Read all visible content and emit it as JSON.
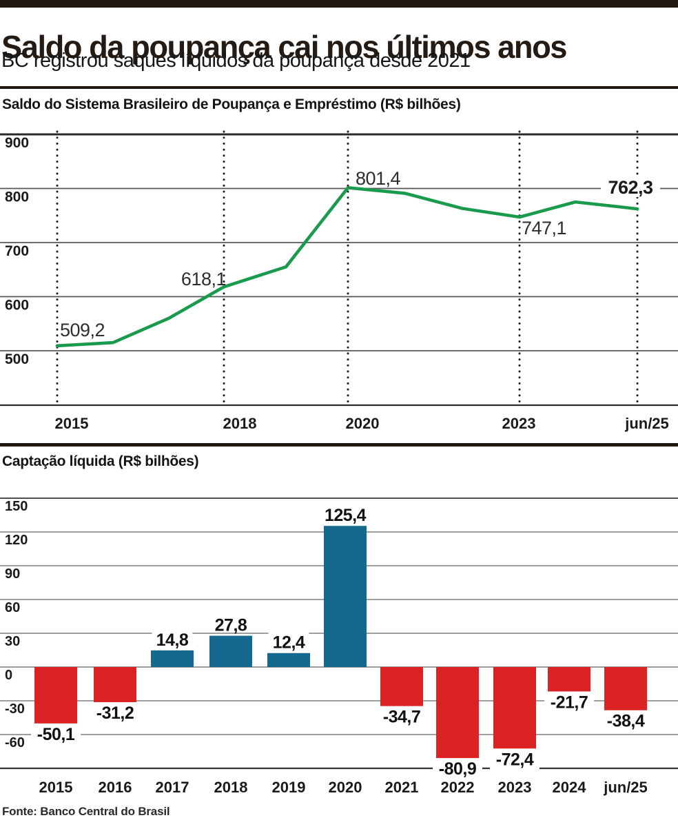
{
  "header": {
    "title": "Saldo da poupança cai nos últimos anos",
    "subtitle": "BC registrou saques líquidos da poupança desde 2021"
  },
  "footer": {
    "source": "Fonte: Banco Central do Brasil"
  },
  "colors": {
    "line_green": "#1a9a4d",
    "bar_positive_blue": "#15698f",
    "bar_negative_red": "#d92221",
    "text_dark": "#1a1a1a",
    "rule_black": "#211813",
    "grid_gray": "#7e7e7e"
  },
  "chart_data": [
    {
      "type": "line",
      "title": "Saldo do Sistema Brasileiro de Poupança e Empréstimo (R$ bilhões)",
      "x": [
        "2015",
        "2016",
        "2017",
        "2018",
        "2019",
        "2020",
        "2021",
        "2022",
        "2023",
        "2024",
        "jun/25"
      ],
      "values": [
        509.2,
        515,
        560,
        618.1,
        655,
        801.4,
        791,
        763,
        747.1,
        775,
        762.3
      ],
      "point_labels": [
        {
          "x": "2015",
          "label": "509,2",
          "bold": false
        },
        {
          "x": "2018",
          "label": "618,1",
          "bold": false
        },
        {
          "x": "2020",
          "label": "801,4",
          "bold": false
        },
        {
          "x": "2023",
          "label": "747,1",
          "bold": false
        },
        {
          "x": "jun/25",
          "label": "762,3",
          "bold": true
        }
      ],
      "yticks": [
        900,
        800,
        700,
        600,
        500
      ],
      "ylim": [
        400,
        900
      ],
      "xticks": [
        "2015",
        "2018",
        "2020",
        "2023",
        "jun/25"
      ],
      "grid": "horizontal solid lines, vertical dotted lines at labeled years",
      "legend": "none",
      "line_color": "#1a9a4d"
    },
    {
      "type": "bar",
      "title": "Captação líquida (R$ bilhões)",
      "categories": [
        "2015",
        "2016",
        "2017",
        "2018",
        "2019",
        "2020",
        "2021",
        "2022",
        "2023",
        "2024",
        "jun/25"
      ],
      "values": [
        -50.1,
        -31.2,
        14.8,
        27.8,
        12.4,
        125.4,
        -34.7,
        -80.9,
        -72.4,
        -21.7,
        -38.4
      ],
      "bar_labels": [
        "-50,1",
        "-31,2",
        "14,8",
        "27,8",
        "12,4",
        "125,4",
        "-34,7",
        "-80,9",
        "-72,4",
        "-21,7",
        "-38,4"
      ],
      "yticks": [
        150,
        120,
        90,
        60,
        30,
        0,
        -30,
        -60
      ],
      "ylim": [
        -90,
        150
      ],
      "grid": "horizontal solid gray lines",
      "legend": "none",
      "positive_color": "#15698f",
      "negative_color": "#d92221"
    }
  ]
}
